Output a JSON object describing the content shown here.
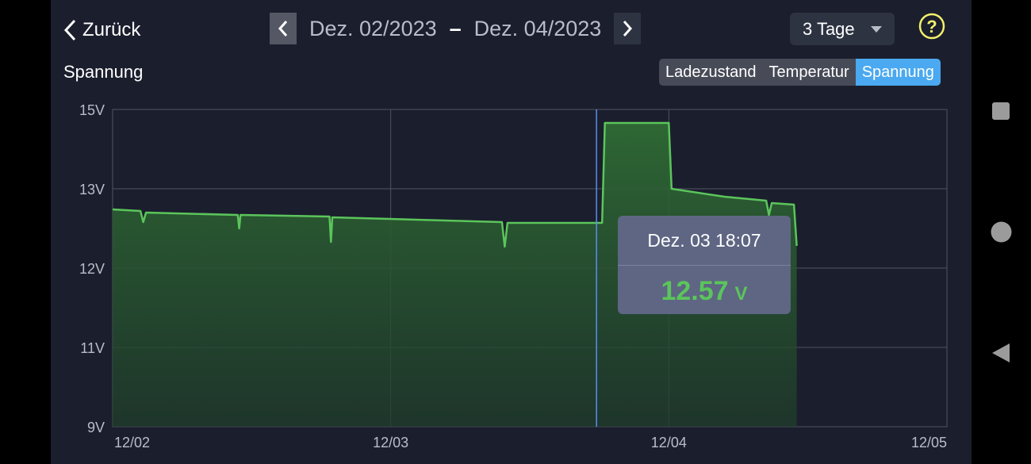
{
  "header": {
    "back_label": "Zurück",
    "date_from": "Dez. 02/2023",
    "date_separator": "–",
    "date_to": "Dez. 04/2023",
    "range_label": "3 Tage"
  },
  "section_title": "Spannung",
  "tabs": [
    {
      "label": "Ladezustand",
      "active": false
    },
    {
      "label": "Temperatur",
      "active": false
    },
    {
      "label": "Spannung",
      "active": true
    }
  ],
  "tooltip": {
    "time": "Dez. 03 18:07",
    "value": "12.57",
    "unit": "V"
  },
  "colors": {
    "background": "#1b1e2d",
    "line": "#5bc55b",
    "active_tab": "#4aa9f0",
    "help_icon": "#f3f06a",
    "cursor_line": "#5a8ff0"
  },
  "icons": [
    "chevron-left-icon",
    "chevron-right-icon",
    "caret-down-icon",
    "help-icon",
    "square-icon",
    "circle-icon",
    "triangle-back-icon"
  ],
  "chart_data": {
    "type": "area",
    "ylabel": "",
    "xlabel": "",
    "ytick_values": [
      9,
      11,
      12,
      13,
      15
    ],
    "ytick_labels": [
      "9V",
      "11V",
      "12V",
      "13V",
      "15V"
    ],
    "xtick_values": [
      0,
      1,
      2,
      3
    ],
    "xtick_labels": [
      "12/02",
      "12/03",
      "12/04",
      "12/05"
    ],
    "ylim": [
      9,
      15
    ],
    "xlim": [
      0,
      3
    ],
    "grid": true,
    "series": [
      {
        "values": [
          [
            0.0,
            12.74
          ],
          [
            0.1,
            12.72
          ],
          [
            0.11,
            12.58
          ],
          [
            0.12,
            12.7
          ],
          [
            0.45,
            12.67
          ],
          [
            0.455,
            12.5
          ],
          [
            0.46,
            12.67
          ],
          [
            0.78,
            12.65
          ],
          [
            0.785,
            12.33
          ],
          [
            0.79,
            12.64
          ],
          [
            1.4,
            12.58
          ],
          [
            1.41,
            12.27
          ],
          [
            1.42,
            12.57
          ],
          [
            1.76,
            12.57
          ],
          [
            1.77,
            14.66
          ],
          [
            2.0,
            14.66
          ],
          [
            2.01,
            13.0
          ],
          [
            2.2,
            12.9
          ],
          [
            2.35,
            12.85
          ],
          [
            2.36,
            12.67
          ],
          [
            2.37,
            12.82
          ],
          [
            2.45,
            12.8
          ],
          [
            2.46,
            12.28
          ]
        ]
      }
    ],
    "cursor_x": 1.74
  }
}
